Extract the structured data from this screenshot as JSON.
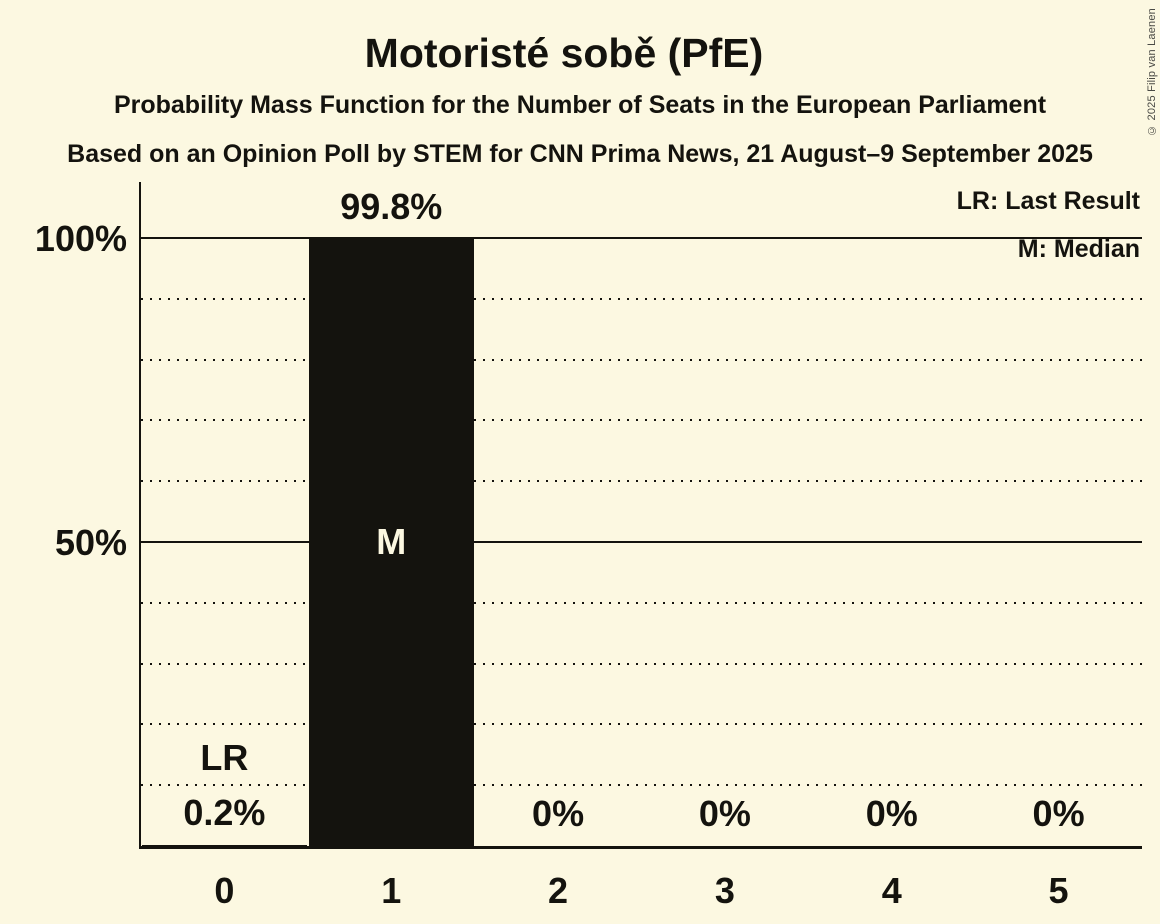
{
  "copyright": "© 2025 Filip van Laenen",
  "chart_data": {
    "type": "bar",
    "title": "Motoristé sobě (PfE)",
    "subtitle": "Probability Mass Function for the Number of Seats in the European Parliament",
    "source_line": "Based on an Opinion Poll by STEM for CNN Prima News, 21 August–9 September 2025",
    "categories": [
      "0",
      "1",
      "2",
      "3",
      "4",
      "5"
    ],
    "values": [
      0.2,
      99.8,
      0,
      0,
      0,
      0
    ],
    "value_labels": [
      "0.2%",
      "99.8%",
      "0%",
      "0%",
      "0%",
      "0%"
    ],
    "ylim": [
      0,
      100
    ],
    "yticks": [
      {
        "label": "100%",
        "value": 100
      },
      {
        "label": "50%",
        "value": 50
      }
    ],
    "major_gridlines_percent": [
      100,
      50
    ],
    "minor_gridlines_percent": [
      90,
      80,
      70,
      60,
      40,
      30,
      20,
      10
    ],
    "grid": true,
    "legend_position": "top-right",
    "legend": [
      {
        "label": "LR: Last Result"
      },
      {
        "label": "M: Median"
      }
    ],
    "annotations": [
      {
        "text": "LR",
        "category": 0,
        "percent": 14.5,
        "inside_bar": false
      },
      {
        "text": "M",
        "category": 1,
        "percent": 50,
        "inside_bar": true
      }
    ],
    "colors": {
      "background": "#fcf8e1",
      "bar": "#14130e",
      "text": "#14130e",
      "bar_label": "#fcf8e1",
      "copyright": "#4a4a45"
    }
  }
}
